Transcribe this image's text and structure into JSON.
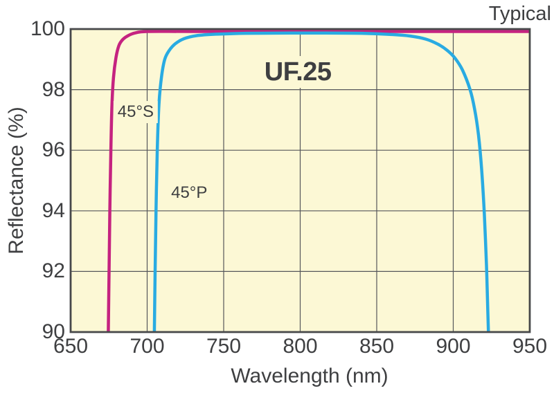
{
  "chart_data": {
    "type": "line",
    "title": "UF.25",
    "corner_label": "Typical",
    "xlabel": "Wavelength (nm)",
    "ylabel": "Reflectance (%)",
    "xlim": [
      650,
      950
    ],
    "ylim": [
      90,
      100
    ],
    "x_ticks": [
      650,
      700,
      750,
      800,
      850,
      900,
      950
    ],
    "y_ticks": [
      90,
      92,
      94,
      96,
      98,
      100
    ],
    "grid": true,
    "legend": "inline-labels",
    "plot_bg": "#FCF8D5",
    "grid_color": "#55565A",
    "frame_color": "#47484A",
    "text_color": "#3E3F41",
    "series": [
      {
        "name": "45°S",
        "color": "#C52380",
        "points": [
          [
            674.6,
            90
          ],
          [
            675.1,
            92
          ],
          [
            675.6,
            94
          ],
          [
            676.3,
            96
          ],
          [
            677.0,
            97.5
          ],
          [
            678.0,
            98.4
          ],
          [
            679.6,
            99.05
          ],
          [
            681.5,
            99.45
          ],
          [
            684,
            99.65
          ],
          [
            687.5,
            99.78
          ],
          [
            692,
            99.87
          ],
          [
            700,
            99.92
          ],
          [
            730,
            99.92
          ],
          [
            800,
            99.92
          ],
          [
            880,
            99.92
          ],
          [
            950,
            99.92
          ]
        ]
      },
      {
        "name": "45°P",
        "color": "#29ABE2",
        "points": [
          [
            704.7,
            90
          ],
          [
            705.2,
            92
          ],
          [
            705.8,
            94
          ],
          [
            706.6,
            96
          ],
          [
            707.7,
            97.5
          ],
          [
            709.3,
            98.4
          ],
          [
            711.5,
            99.0
          ],
          [
            714.5,
            99.3
          ],
          [
            718.5,
            99.52
          ],
          [
            724,
            99.68
          ],
          [
            732,
            99.78
          ],
          [
            745,
            99.83
          ],
          [
            765,
            99.86
          ],
          [
            800,
            99.87
          ],
          [
            840,
            99.86
          ],
          [
            860,
            99.82
          ],
          [
            872,
            99.77
          ],
          [
            882,
            99.67
          ],
          [
            890,
            99.5
          ],
          [
            896,
            99.3
          ],
          [
            901,
            99.05
          ],
          [
            906,
            98.65
          ],
          [
            911,
            98.0
          ],
          [
            914,
            97.35
          ],
          [
            916.5,
            96.5
          ],
          [
            918.5,
            95.4
          ],
          [
            920.3,
            93.9
          ],
          [
            921.7,
            92.2
          ],
          [
            922.6,
            90.7
          ],
          [
            923,
            90
          ]
        ]
      }
    ],
    "annotations": [
      {
        "text": "UF.25",
        "x": 798.5,
        "y": 98.58,
        "style": "title"
      },
      {
        "text": "45°S",
        "x": 692.5,
        "y": 97.25,
        "style": "series"
      },
      {
        "text": "45°P",
        "x": 727.5,
        "y": 94.6,
        "style": "series"
      }
    ]
  }
}
